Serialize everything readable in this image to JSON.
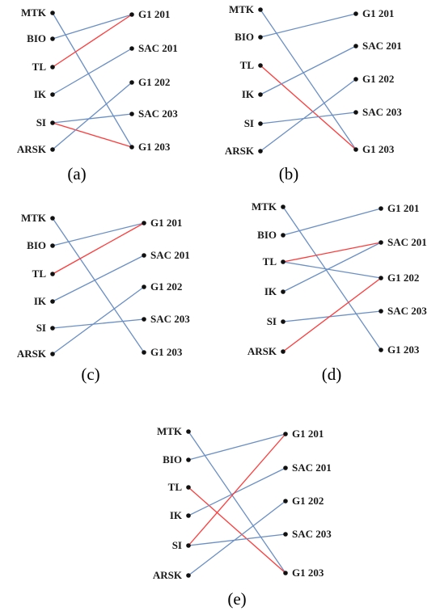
{
  "colors": {
    "blue": "#6a8fc4",
    "red": "#ff3a3a",
    "node": "#111111"
  },
  "left_nodes": [
    "MTK",
    "BIO",
    "TL",
    "IK",
    "SI",
    "ARSK"
  ],
  "right_nodes": [
    "G1 201",
    "SAC 201",
    "G1 202",
    "SAC 203",
    "G1 203"
  ],
  "panels": [
    {
      "caption": "(a)",
      "edges": [
        {
          "from": "MTK",
          "to": "G1 203",
          "color": "blue"
        },
        {
          "from": "BIO",
          "to": "G1 201",
          "color": "blue"
        },
        {
          "from": "TL",
          "to": "G1 201",
          "color": "red"
        },
        {
          "from": "IK",
          "to": "SAC 201",
          "color": "blue"
        },
        {
          "from": "SI",
          "to": "SAC 203",
          "color": "blue"
        },
        {
          "from": "SI",
          "to": "G1 203",
          "color": "red"
        },
        {
          "from": "ARSK",
          "to": "G1 202",
          "color": "blue"
        }
      ]
    },
    {
      "caption": "(b)",
      "edges": [
        {
          "from": "MTK",
          "to": "G1 203",
          "color": "blue"
        },
        {
          "from": "BIO",
          "to": "G1 201",
          "color": "blue"
        },
        {
          "from": "TL",
          "to": "G1 203",
          "color": "red"
        },
        {
          "from": "IK",
          "to": "SAC 201",
          "color": "blue"
        },
        {
          "from": "SI",
          "to": "SAC 203",
          "color": "blue"
        },
        {
          "from": "ARSK",
          "to": "G1 202",
          "color": "blue"
        }
      ]
    },
    {
      "caption": "(c)",
      "edges": [
        {
          "from": "MTK",
          "to": "G1 203",
          "color": "blue"
        },
        {
          "from": "BIO",
          "to": "G1 201",
          "color": "blue"
        },
        {
          "from": "TL",
          "to": "G1 201",
          "color": "red"
        },
        {
          "from": "IK",
          "to": "SAC 201",
          "color": "blue"
        },
        {
          "from": "SI",
          "to": "SAC 203",
          "color": "blue"
        },
        {
          "from": "ARSK",
          "to": "G1 202",
          "color": "blue"
        }
      ]
    },
    {
      "caption": "(d)",
      "edges": [
        {
          "from": "MTK",
          "to": "G1 203",
          "color": "blue"
        },
        {
          "from": "BIO",
          "to": "G1 201",
          "color": "blue"
        },
        {
          "from": "TL",
          "to": "SAC 201",
          "color": "red"
        },
        {
          "from": "TL",
          "to": "G1 202",
          "color": "blue"
        },
        {
          "from": "IK",
          "to": "SAC 201",
          "color": "blue"
        },
        {
          "from": "SI",
          "to": "SAC 203",
          "color": "blue"
        },
        {
          "from": "ARSK",
          "to": "G1 202",
          "color": "red"
        }
      ]
    },
    {
      "caption": "(e)",
      "edges": [
        {
          "from": "MTK",
          "to": "G1 203",
          "color": "blue"
        },
        {
          "from": "BIO",
          "to": "G1 201",
          "color": "blue"
        },
        {
          "from": "TL",
          "to": "G1 203",
          "color": "red"
        },
        {
          "from": "IK",
          "to": "SAC 201",
          "color": "blue"
        },
        {
          "from": "SI",
          "to": "G1 201",
          "color": "red"
        },
        {
          "from": "SI",
          "to": "SAC 203",
          "color": "blue"
        },
        {
          "from": "ARSK",
          "to": "G1 202",
          "color": "blue"
        }
      ]
    }
  ]
}
